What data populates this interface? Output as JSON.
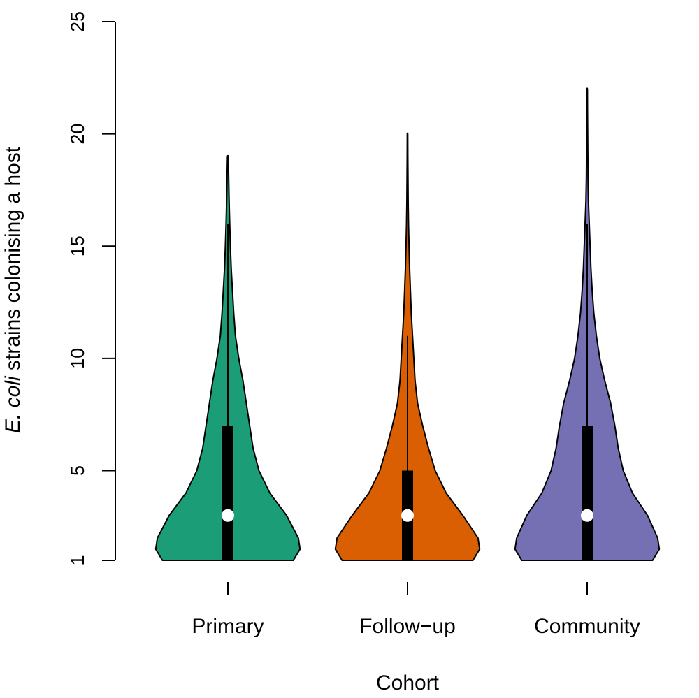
{
  "chart_data": {
    "type": "violin",
    "xlabel": "Cohort",
    "ylabel": {
      "italic": "E. coli",
      "rest": " strains colonising a host"
    },
    "ylim": [
      1,
      25
    ],
    "yticks": [
      1,
      5,
      10,
      15,
      20,
      25
    ],
    "categories": [
      "Primary",
      "Follow−up",
      "Community"
    ],
    "series": [
      {
        "category": "Primary",
        "color": "#1b9e77",
        "min": 1,
        "q1": 1,
        "median": 3,
        "q3": 7,
        "max": 19,
        "whisker_low": 1,
        "whisker_high": 16,
        "density": [
          [
            1,
            0.78
          ],
          [
            1.5,
            0.86
          ],
          [
            2,
            0.84
          ],
          [
            3,
            0.7
          ],
          [
            4,
            0.5
          ],
          [
            5,
            0.37
          ],
          [
            6,
            0.3
          ],
          [
            7,
            0.26
          ],
          [
            8,
            0.22
          ],
          [
            9,
            0.18
          ],
          [
            10,
            0.13
          ],
          [
            11,
            0.09
          ],
          [
            12,
            0.07
          ],
          [
            13,
            0.055
          ],
          [
            14,
            0.04
          ],
          [
            15,
            0.03
          ],
          [
            16,
            0.022
          ],
          [
            17,
            0.015
          ],
          [
            18,
            0.01
          ],
          [
            19,
            0.005
          ]
        ]
      },
      {
        "category": "Follow−up",
        "color": "#d95f02",
        "min": 1,
        "q1": 1,
        "median": 3,
        "q3": 5,
        "max": 20,
        "whisker_low": 1,
        "whisker_high": 11,
        "density": [
          [
            1,
            0.78
          ],
          [
            1.5,
            0.86
          ],
          [
            2,
            0.84
          ],
          [
            3,
            0.66
          ],
          [
            4,
            0.46
          ],
          [
            5,
            0.33
          ],
          [
            6,
            0.25
          ],
          [
            7,
            0.18
          ],
          [
            8,
            0.12
          ],
          [
            9,
            0.09
          ],
          [
            10,
            0.075
          ],
          [
            11,
            0.06
          ],
          [
            12,
            0.045
          ],
          [
            13,
            0.035
          ],
          [
            14,
            0.025
          ],
          [
            15,
            0.018
          ],
          [
            16,
            0.012
          ],
          [
            17,
            0.008
          ],
          [
            18,
            0.006
          ],
          [
            19,
            0.004
          ],
          [
            20,
            0.003
          ]
        ]
      },
      {
        "category": "Community",
        "color": "#7570b3",
        "min": 1,
        "q1": 1,
        "median": 3,
        "q3": 7,
        "max": 22,
        "whisker_low": 1,
        "whisker_high": 16,
        "density": [
          [
            1,
            0.78
          ],
          [
            1.5,
            0.86
          ],
          [
            2,
            0.84
          ],
          [
            3,
            0.72
          ],
          [
            4,
            0.54
          ],
          [
            5,
            0.43
          ],
          [
            6,
            0.37
          ],
          [
            7,
            0.33
          ],
          [
            8,
            0.28
          ],
          [
            9,
            0.21
          ],
          [
            10,
            0.15
          ],
          [
            11,
            0.11
          ],
          [
            12,
            0.08
          ],
          [
            13,
            0.06
          ],
          [
            14,
            0.045
          ],
          [
            15,
            0.035
          ],
          [
            16,
            0.025
          ],
          [
            17,
            0.015
          ],
          [
            18,
            0.01
          ],
          [
            19,
            0.008
          ],
          [
            20,
            0.006
          ],
          [
            21,
            0.004
          ],
          [
            22,
            0.003
          ]
        ]
      }
    ],
    "grid": false,
    "legend": "none"
  }
}
